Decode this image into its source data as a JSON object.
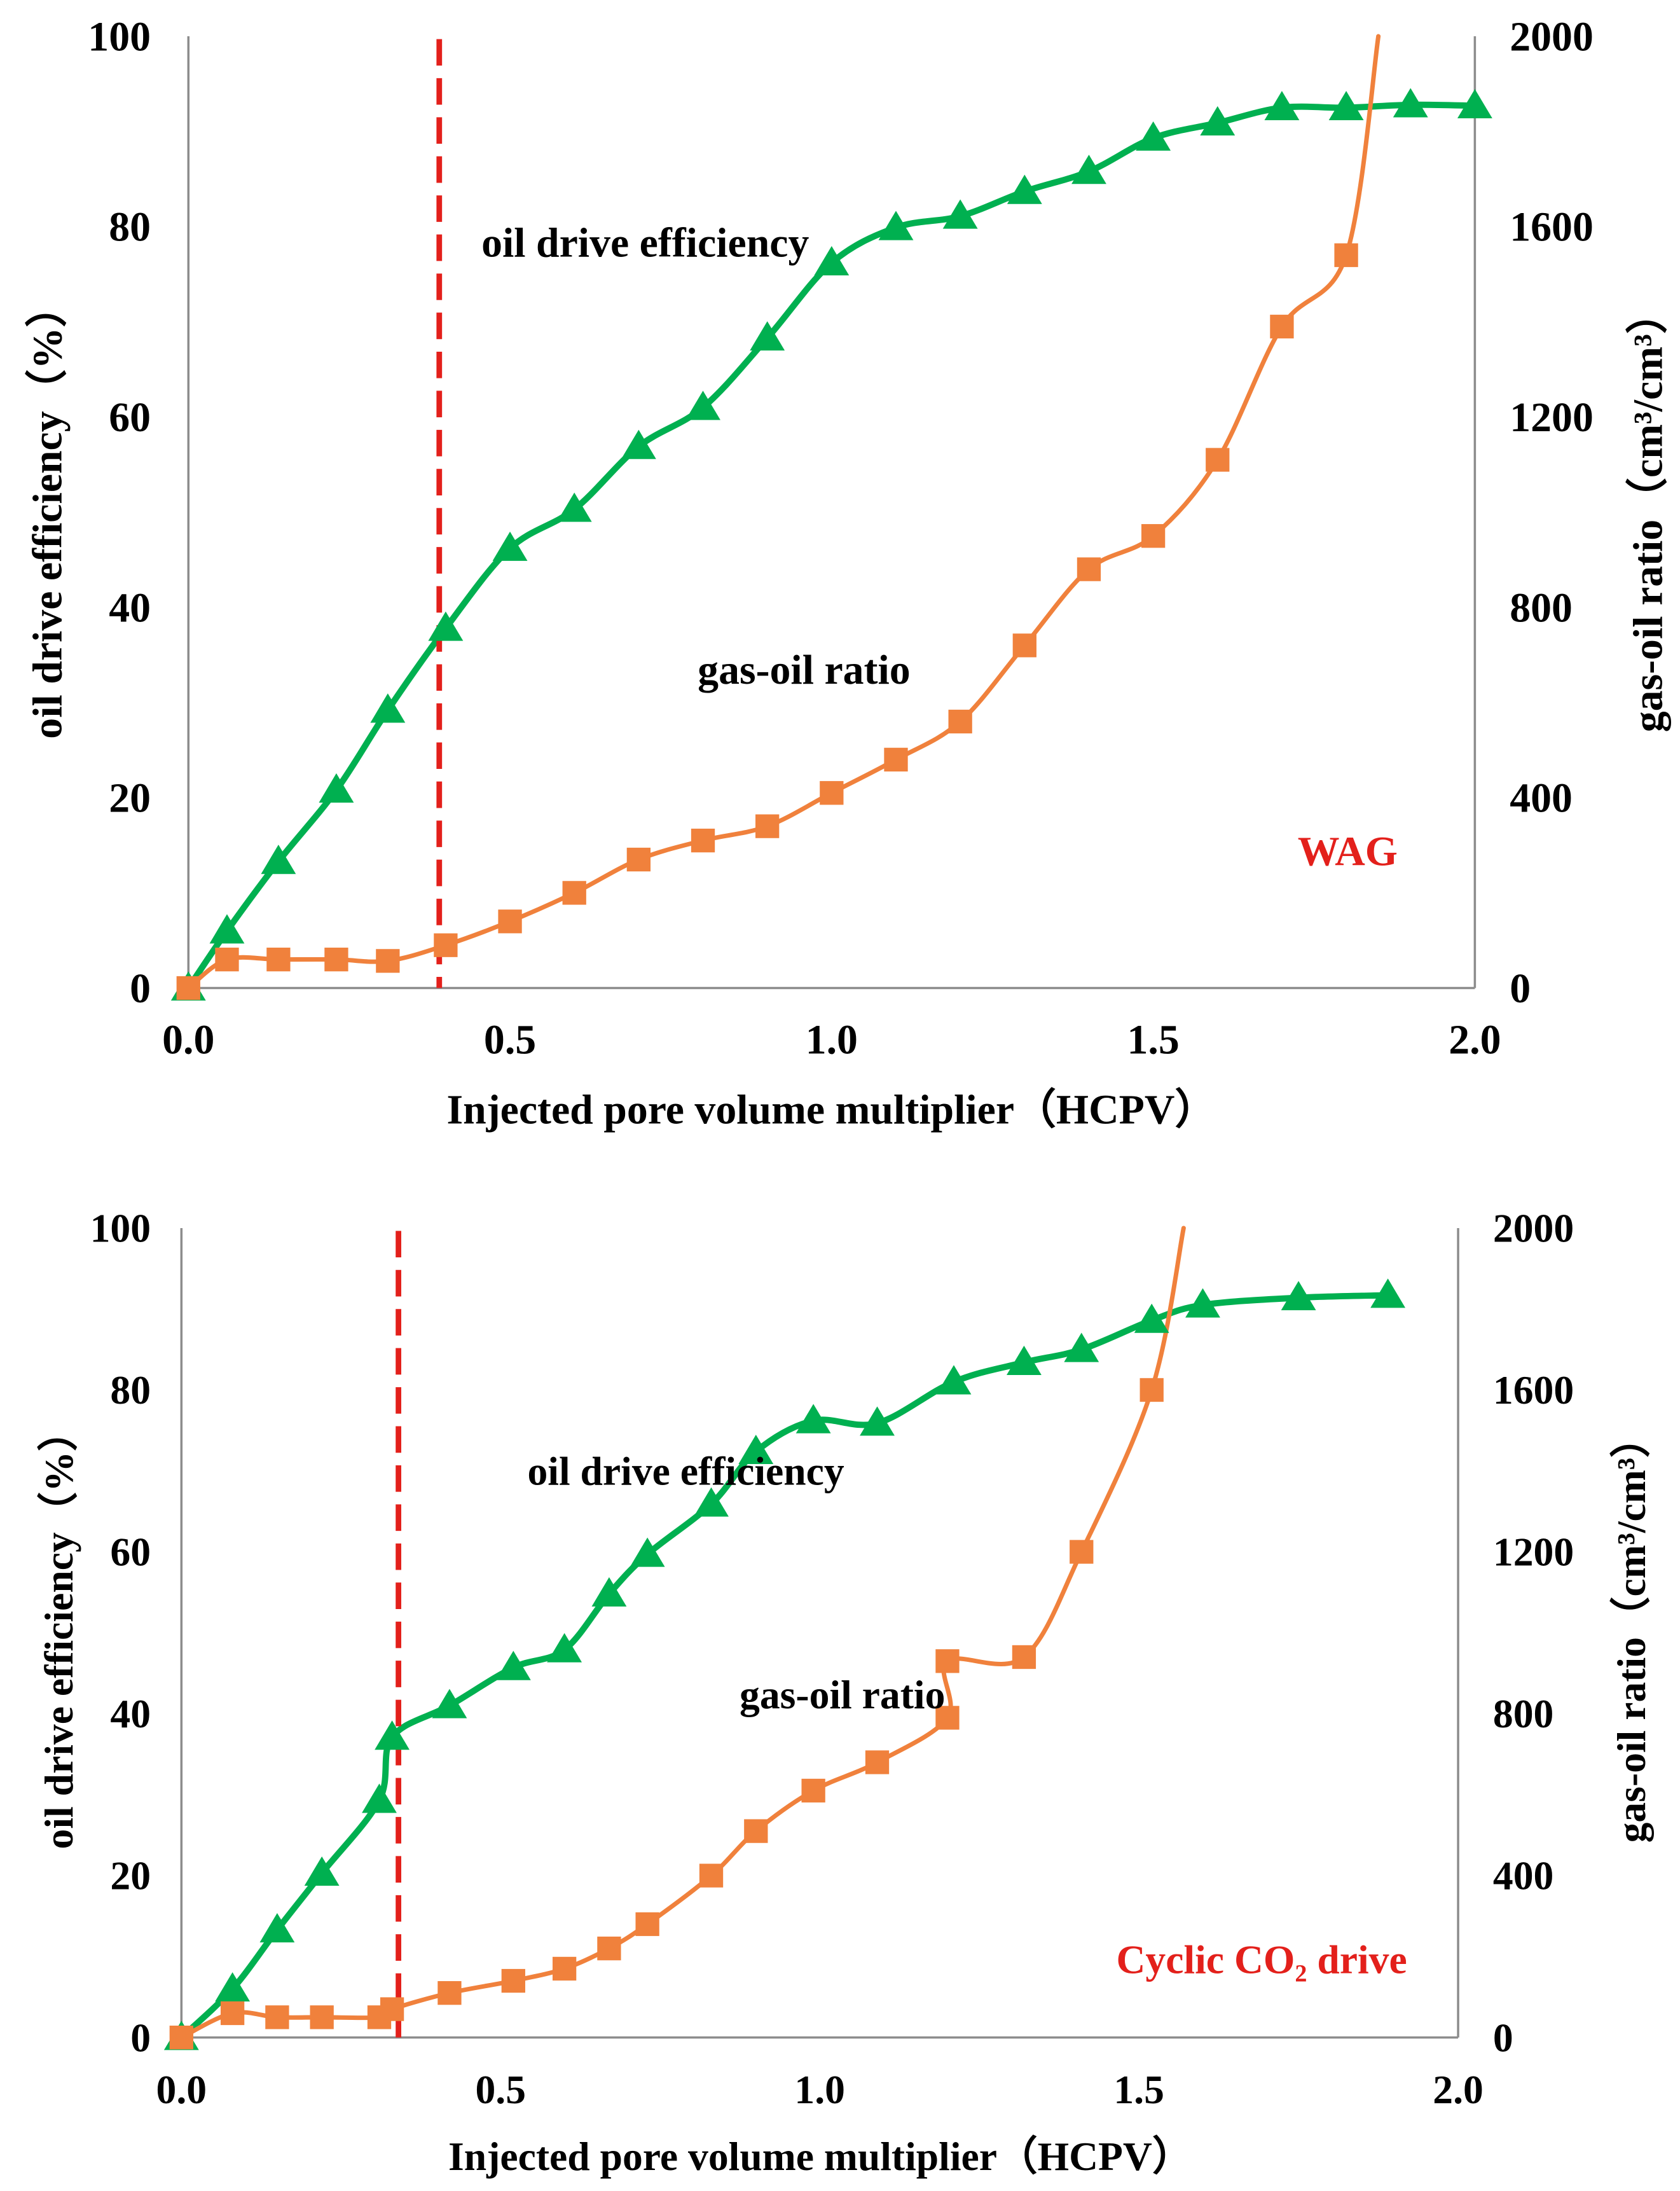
{
  "figure": {
    "background": "#FFFFFF",
    "text_color": "#000000",
    "axis_color": "#8C8C8C"
  },
  "chart_data": [
    {
      "type": "line",
      "label": "WAG",
      "label_color": "#E3201B",
      "xlabel": "Injected pore volume multiplier（HCPV）",
      "ylabel": "oil drive efficiency（%）",
      "y2label": "gas-oil ratio（cm³/cm³）",
      "xlim": [
        0,
        2
      ],
      "ylim": [
        0,
        100
      ],
      "y2lim": [
        0,
        2000
      ],
      "xticks": [
        "0.0",
        "0.5",
        "1.0",
        "1.5",
        "2.0"
      ],
      "yticks": [
        "0",
        "20",
        "40",
        "60",
        "80",
        "100"
      ],
      "y2ticks": [
        "0",
        "400",
        "800",
        "1200",
        "1600",
        "2000"
      ],
      "grid": false,
      "reference_line": {
        "x": 0.39,
        "color": "#E3201B"
      },
      "series": [
        {
          "name": "oil drive efficiency",
          "secondary_axis": false,
          "color": "#00B050",
          "x": [
            0,
            0.06,
            0.14,
            0.23,
            0.31,
            0.4,
            0.5,
            0.6,
            0.7,
            0.8,
            0.9,
            1.0,
            1.1,
            1.2,
            1.3,
            1.4,
            1.5,
            1.6,
            1.7,
            1.8,
            1.9,
            2.0
          ],
          "y": [
            0,
            6.0,
            13.3,
            20.8,
            29.2,
            37.8,
            46.2,
            50.3,
            56.9,
            61.0,
            68.3,
            76.2,
            79.9,
            81.1,
            83.7,
            85.8,
            89.3,
            90.9,
            92.5,
            92.5,
            92.8,
            92.7
          ]
        },
        {
          "name": "gas-oil ratio",
          "secondary_axis": true,
          "color": "#F0813C",
          "x": [
            0,
            0.06,
            0.14,
            0.23,
            0.31,
            0.4,
            0.5,
            0.6,
            0.7,
            0.8,
            0.9,
            1.0,
            1.1,
            1.2,
            1.3,
            1.4,
            1.5,
            1.6,
            1.7,
            1.8
          ],
          "y": [
            0,
            60,
            60,
            60,
            57,
            90,
            140,
            200,
            270,
            310,
            340,
            410,
            480,
            560,
            720,
            880,
            950,
            1110,
            1390,
            1540
          ],
          "exceeds_axis_max_at_x": 1.85
        }
      ]
    },
    {
      "type": "line",
      "label": "Cyclic CO₂ drive",
      "label_color": "#E3201B",
      "xlabel": "Injected pore volume multiplier（HCPV）",
      "ylabel": "oil drive efficiency（%）",
      "y2label": "gas-oil ratio（cm³/cm³）",
      "xlim": [
        0,
        2
      ],
      "ylim": [
        0,
        100
      ],
      "y2lim": [
        0,
        2000
      ],
      "xticks": [
        "0.0",
        "0.5",
        "1.0",
        "1.5",
        "2.0"
      ],
      "yticks": [
        "0",
        "20",
        "40",
        "60",
        "80",
        "100"
      ],
      "y2ticks": [
        "0",
        "400",
        "800",
        "1200",
        "1600",
        "2000"
      ],
      "grid": false,
      "reference_line": {
        "x": 0.34,
        "color": "#E3201B"
      },
      "series": [
        {
          "name": "oil drive efficiency",
          "secondary_axis": false,
          "color": "#00B050",
          "x": [
            0,
            0.08,
            0.15,
            0.22,
            0.31,
            0.33,
            0.42,
            0.52,
            0.6,
            0.67,
            0.73,
            0.83,
            0.9,
            0.99,
            1.09,
            1.21,
            1.32,
            1.41,
            1.52,
            1.6,
            1.75,
            1.89
          ],
          "y": [
            0,
            6.0,
            13.3,
            20.3,
            29.3,
            37.1,
            41.0,
            45.7,
            47.9,
            54.8,
            59.7,
            65.9,
            72.4,
            76.2,
            75.9,
            81.0,
            83.4,
            85.0,
            88.6,
            90.5,
            91.4,
            91.7
          ]
        },
        {
          "name": "gas-oil ratio",
          "secondary_axis": true,
          "color": "#F0813C",
          "x": [
            0,
            0.08,
            0.15,
            0.22,
            0.31,
            0.33,
            0.42,
            0.52,
            0.6,
            0.67,
            0.73,
            0.83,
            0.9,
            0.99,
            1.09,
            1.2,
            1.2,
            1.32,
            1.41,
            1.52
          ],
          "y": [
            0,
            60,
            50,
            50,
            50,
            70,
            110,
            140,
            170,
            220,
            280,
            400,
            510,
            610,
            680,
            790,
            930,
            940,
            1200,
            1600
          ],
          "exceeds_axis_max_at_x": 1.57
        }
      ]
    }
  ]
}
